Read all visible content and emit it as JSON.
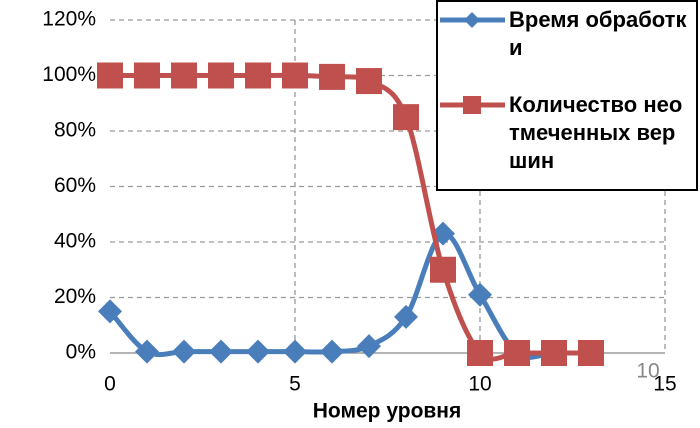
{
  "chart_data": {
    "type": "line",
    "x_label": "Номер уровня",
    "x": [
      0,
      1,
      2,
      3,
      4,
      5,
      6,
      7,
      8,
      9,
      10,
      11,
      12,
      13
    ],
    "series": [
      {
        "name": "Время обработки",
        "color": "#4a7ebb",
        "marker": "diamond",
        "values": [
          15,
          0.5,
          0.5,
          0.5,
          0.5,
          0.5,
          0.5,
          2.5,
          13,
          43,
          21,
          0,
          0,
          0
        ]
      },
      {
        "name": "Количество неотмеченных вершин",
        "color": "#c0504d",
        "marker": "square",
        "values": [
          100,
          100,
          100,
          100,
          100,
          100,
          99.5,
          98,
          85,
          30,
          0,
          0,
          0,
          0
        ]
      }
    ],
    "xlim": [
      0,
      15
    ],
    "xticks": [
      0,
      5,
      10,
      15
    ],
    "ylim": [
      0,
      120
    ],
    "yticks": [
      {
        "value": 0,
        "label": "0%"
      },
      {
        "value": 20,
        "label": "20%"
      },
      {
        "value": 40,
        "label": "40%"
      },
      {
        "value": 60,
        "label": "60%"
      },
      {
        "value": 80,
        "label": "80%"
      },
      {
        "value": 100,
        "label": "100%"
      },
      {
        "value": 120,
        "label": "120%"
      }
    ],
    "grid": true,
    "legend": "upper right",
    "smooth": true,
    "annotations": [
      "10"
    ]
  }
}
